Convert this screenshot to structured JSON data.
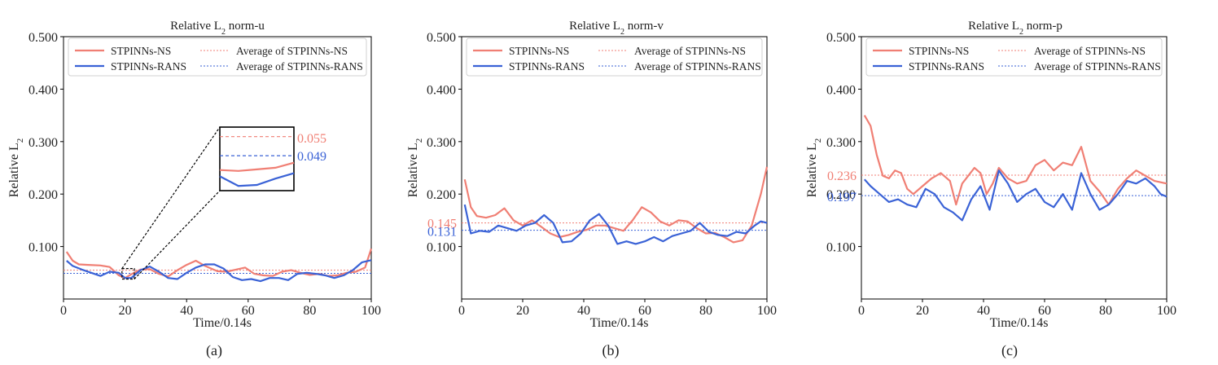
{
  "colors": {
    "ns": "#f07f74",
    "rans": "#3a62d6",
    "axis": "#000000"
  },
  "chart_data": [
    {
      "id": "a",
      "type": "line",
      "title_main": "Relative L",
      "title_sub": "2",
      "title_tail": " norm-u",
      "ylabel_main": "Relative L",
      "ylabel_sub": "2",
      "xlabel": "Time/0.14s",
      "caption": "(a)",
      "xlim": [
        0,
        100
      ],
      "ylim": [
        0,
        0.5
      ],
      "xticks": [
        "0",
        "20",
        "40",
        "60",
        "80",
        "100"
      ],
      "yticks": [
        "0.100",
        "0.200",
        "0.300",
        "0.400",
        "0.500"
      ],
      "legend": [
        "STPINNs-NS",
        "STPINNs-RANS",
        "Average of STPINNs-NS",
        "Average of STPINNs-RANS"
      ],
      "series": [
        {
          "name": "STPINNs-NS",
          "x": [
            1,
            3,
            5,
            8,
            12,
            15,
            18,
            20,
            22,
            25,
            28,
            31,
            34,
            37,
            40,
            43,
            46,
            50,
            53,
            56,
            59,
            62,
            65,
            68,
            71,
            74,
            77,
            80,
            83,
            86,
            89,
            92,
            95,
            98,
            100
          ],
          "y": [
            0.09,
            0.073,
            0.066,
            0.065,
            0.064,
            0.061,
            0.045,
            0.04,
            0.047,
            0.056,
            0.057,
            0.048,
            0.043,
            0.055,
            0.065,
            0.073,
            0.063,
            0.053,
            0.052,
            0.056,
            0.06,
            0.048,
            0.045,
            0.044,
            0.052,
            0.055,
            0.05,
            0.046,
            0.048,
            0.044,
            0.045,
            0.05,
            0.052,
            0.06,
            0.096
          ]
        },
        {
          "name": "STPINNs-RANS",
          "x": [
            1,
            3,
            6,
            9,
            12,
            15,
            18,
            20,
            22,
            25,
            28,
            31,
            34,
            37,
            40,
            43,
            46,
            49,
            52,
            55,
            58,
            61,
            64,
            67,
            70,
            73,
            76,
            79,
            82,
            85,
            88,
            91,
            94,
            97,
            100
          ],
          "y": [
            0.073,
            0.063,
            0.056,
            0.05,
            0.044,
            0.052,
            0.05,
            0.04,
            0.04,
            0.055,
            0.062,
            0.052,
            0.04,
            0.038,
            0.05,
            0.06,
            0.066,
            0.066,
            0.058,
            0.042,
            0.036,
            0.038,
            0.034,
            0.04,
            0.04,
            0.036,
            0.048,
            0.05,
            0.048,
            0.045,
            0.04,
            0.045,
            0.055,
            0.07,
            0.074
          ]
        }
      ],
      "averages": [
        {
          "series": "STPINNs-NS",
          "value": 0.055,
          "label": "0.055"
        },
        {
          "series": "STPINNs-RANS",
          "value": 0.049,
          "label": "0.049"
        }
      ],
      "inset": {
        "xrange": [
          19,
          23
        ],
        "yrange": [
          0.038,
          0.058
        ]
      }
    },
    {
      "id": "b",
      "type": "line",
      "title_main": "Relative L",
      "title_sub": "2",
      "title_tail": " norm-v",
      "ylabel_main": "Relative L",
      "ylabel_sub": "2",
      "xlabel": "Time/0.14s",
      "caption": "(b)",
      "xlim": [
        0,
        100
      ],
      "ylim": [
        0,
        0.5
      ],
      "xticks": [
        "0",
        "20",
        "40",
        "60",
        "80",
        "100"
      ],
      "yticks": [
        "0.100",
        "0.200",
        "0.300",
        "0.400",
        "0.500"
      ],
      "legend": [
        "STPINNs-NS",
        "STPINNs-RANS",
        "Average of STPINNs-NS",
        "Average of STPINNs-RANS"
      ],
      "series": [
        {
          "name": "STPINNs-NS",
          "x": [
            1,
            3,
            5,
            8,
            11,
            14,
            17,
            20,
            23,
            26,
            29,
            32,
            35,
            38,
            41,
            44,
            47,
            50,
            53,
            56,
            59,
            62,
            65,
            68,
            71,
            74,
            77,
            80,
            83,
            86,
            89,
            92,
            95,
            98,
            100
          ],
          "y": [
            0.228,
            0.175,
            0.158,
            0.155,
            0.16,
            0.173,
            0.15,
            0.14,
            0.15,
            0.138,
            0.125,
            0.118,
            0.122,
            0.128,
            0.132,
            0.14,
            0.14,
            0.135,
            0.13,
            0.15,
            0.175,
            0.165,
            0.148,
            0.14,
            0.15,
            0.148,
            0.135,
            0.125,
            0.126,
            0.118,
            0.108,
            0.112,
            0.14,
            0.2,
            0.252
          ]
        },
        {
          "name": "STPINNs-RANS",
          "x": [
            1,
            3,
            6,
            9,
            12,
            15,
            18,
            21,
            24,
            27,
            30,
            33,
            36,
            39,
            42,
            45,
            48,
            51,
            54,
            57,
            60,
            63,
            66,
            69,
            72,
            75,
            78,
            81,
            84,
            87,
            90,
            93,
            96,
            98,
            100
          ],
          "y": [
            0.18,
            0.125,
            0.13,
            0.128,
            0.14,
            0.135,
            0.13,
            0.14,
            0.145,
            0.16,
            0.145,
            0.108,
            0.11,
            0.125,
            0.15,
            0.162,
            0.14,
            0.105,
            0.11,
            0.105,
            0.11,
            0.118,
            0.11,
            0.12,
            0.125,
            0.13,
            0.145,
            0.128,
            0.122,
            0.12,
            0.128,
            0.125,
            0.14,
            0.148,
            0.145
          ]
        }
      ],
      "averages": [
        {
          "series": "STPINNs-NS",
          "value": 0.145,
          "label": "0.145"
        },
        {
          "series": "STPINNs-RANS",
          "value": 0.131,
          "label": "0.131"
        }
      ]
    },
    {
      "id": "c",
      "type": "line",
      "title_main": "Relative L",
      "title_sub": "2",
      "title_tail": " norm-p",
      "ylabel_main": "Relative L",
      "ylabel_sub": "2",
      "xlabel": "Time/0.14s",
      "caption": "(c)",
      "xlim": [
        0,
        100
      ],
      "ylim": [
        0,
        0.5
      ],
      "xticks": [
        "0",
        "20",
        "40",
        "60",
        "80",
        "100"
      ],
      "yticks": [
        "0.100",
        "0.200",
        "0.300",
        "0.400",
        "0.500"
      ],
      "legend": [
        "STPINNs-NS",
        "STPINNs-RANS",
        "Average of STPINNs-NS",
        "Average of STPINNs-RANS"
      ],
      "series": [
        {
          "name": "STPINNs-NS",
          "x": [
            1,
            3,
            5,
            7,
            9,
            11,
            13,
            15,
            17,
            20,
            23,
            26,
            29,
            31,
            33,
            35,
            37,
            39,
            41,
            43,
            45,
            48,
            51,
            54,
            57,
            60,
            63,
            66,
            69,
            72,
            75,
            78,
            81,
            84,
            87,
            90,
            93,
            96,
            100
          ],
          "y": [
            0.35,
            0.33,
            0.275,
            0.235,
            0.23,
            0.245,
            0.24,
            0.21,
            0.2,
            0.215,
            0.23,
            0.24,
            0.225,
            0.18,
            0.22,
            0.235,
            0.25,
            0.24,
            0.2,
            0.22,
            0.25,
            0.23,
            0.22,
            0.225,
            0.255,
            0.265,
            0.245,
            0.26,
            0.255,
            0.29,
            0.225,
            0.205,
            0.18,
            0.21,
            0.23,
            0.245,
            0.235,
            0.225,
            0.22
          ]
        },
        {
          "name": "STPINNs-RANS",
          "x": [
            1,
            3,
            6,
            9,
            12,
            15,
            18,
            21,
            24,
            27,
            30,
            33,
            36,
            39,
            42,
            45,
            48,
            51,
            54,
            57,
            60,
            63,
            66,
            69,
            72,
            75,
            78,
            81,
            84,
            87,
            90,
            93,
            96,
            98,
            100
          ],
          "y": [
            0.228,
            0.215,
            0.2,
            0.185,
            0.19,
            0.18,
            0.175,
            0.21,
            0.2,
            0.175,
            0.165,
            0.15,
            0.19,
            0.215,
            0.17,
            0.245,
            0.22,
            0.185,
            0.2,
            0.21,
            0.185,
            0.175,
            0.2,
            0.17,
            0.24,
            0.2,
            0.17,
            0.18,
            0.2,
            0.225,
            0.22,
            0.23,
            0.215,
            0.2,
            0.195
          ]
        }
      ],
      "averages": [
        {
          "series": "STPINNs-NS",
          "value": 0.236,
          "label": "0.236"
        },
        {
          "series": "STPINNs-RANS",
          "value": 0.197,
          "label": "0.197"
        }
      ]
    }
  ]
}
